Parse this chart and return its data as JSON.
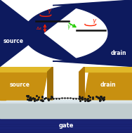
{
  "fig_width": 1.88,
  "fig_height": 1.89,
  "dpi": 100,
  "top_panel": {
    "source_color": "#0d1a5e",
    "drain_color": "#0d1a5e",
    "source_label": "source",
    "drain_label": "drain",
    "red": "#ff2200",
    "green": "#22cc00",
    "level_color": "#111111"
  },
  "bottom_panel": {
    "gate_color": "#1a237e",
    "substrate_top": "#d0d8dc",
    "substrate_bot": "#b8c4c8",
    "gold_front": "#c89010",
    "gold_top": "#e8c030",
    "gold_side": "#a07008",
    "molecule_color": "#1a1a1a",
    "source_label": "source",
    "drain_label": "drain",
    "gate_label": "gate"
  }
}
